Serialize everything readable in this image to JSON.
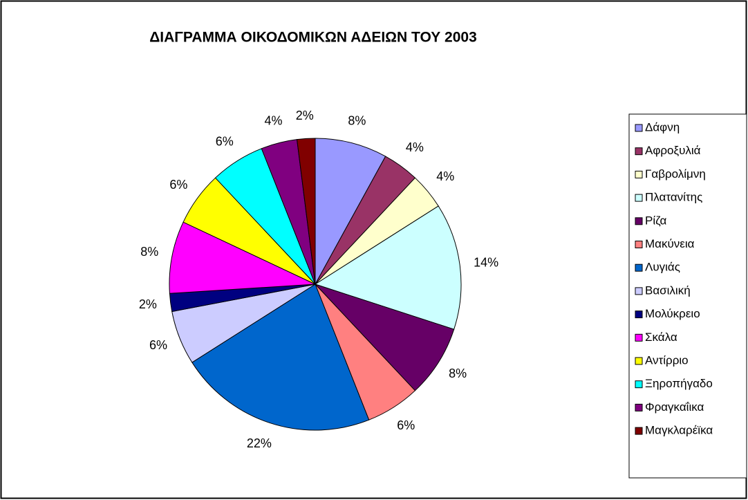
{
  "chart_data": {
    "type": "pie",
    "title": "ΔΙΑΓΡΑΜΜΑ ΟΙΚΟΔΟΜΙΚΩΝ ΑΔΕΙΩΝ ΤΟΥ 2003",
    "categories": [
      "Δάφνη",
      "Αφροξυλιά",
      "Γαβρολίμνη",
      "Πλατανίτης",
      "Ρίζα",
      "Μακύνεια",
      "Λυγιάς",
      "Βασιλική",
      "Μολύκρειο",
      "Σκάλα",
      "Αντίρριο",
      "Ξηροπήγαδο",
      "Φραγκαΐικα",
      "Μαγκλαρέϊκα"
    ],
    "values": [
      8,
      4,
      4,
      14,
      8,
      6,
      22,
      6,
      2,
      8,
      6,
      6,
      4,
      2
    ],
    "value_labels": [
      "8%",
      "4%",
      "4%",
      "14%",
      "8%",
      "6%",
      "22%",
      "6%",
      "2%",
      "8%",
      "6%",
      "6%",
      "4%",
      "2%"
    ],
    "colors": [
      "#9999ff",
      "#993366",
      "#ffffcc",
      "#ccffff",
      "#660066",
      "#ff8080",
      "#0066cc",
      "#ccccff",
      "#000080",
      "#ff00ff",
      "#ffff00",
      "#00ffff",
      "#800080",
      "#800000"
    ],
    "legend": "right"
  }
}
